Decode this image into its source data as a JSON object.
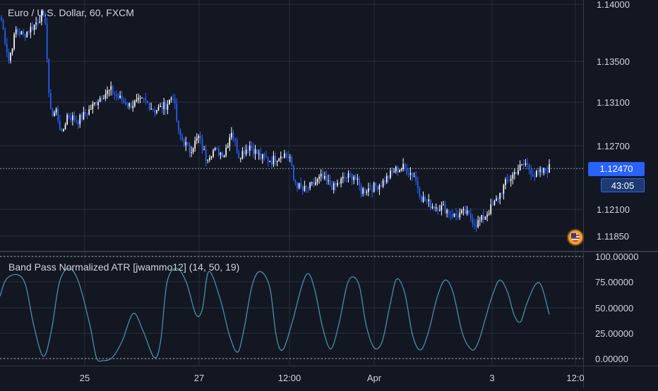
{
  "header": {
    "title": "Euro / U.S. Dollar, 60, FXCM",
    "indicator_title": "Band Pass Normalized ATR [jwammo12] (14, 50, 19)"
  },
  "price_badge": {
    "last_price": "1.12470",
    "countdown": "43:05"
  },
  "colors": {
    "background": "#131722",
    "bull": "#ffffff",
    "bear": "#2962ff",
    "oscillator": "#4a8ea8",
    "axis_text": "#d1d4dc",
    "price_badge": "#2962ff"
  },
  "icons": {
    "currency_flag": "us-flag-icon"
  },
  "chart_data": [
    {
      "type": "candlestick",
      "title": "Euro / U.S. Dollar, 60, FXCM",
      "ylim": [
        1.1165,
        1.1415
      ],
      "y_ticks": [
        "1.14000",
        "1.13500",
        "1.13100",
        "1.12700",
        "1.12100",
        "1.11850"
      ],
      "last_price": 1.1247,
      "anchors": [
        [
          0,
          1.1395
        ],
        [
          4,
          1.1355
        ],
        [
          8,
          1.1385
        ],
        [
          12,
          1.138
        ],
        [
          18,
          1.139
        ],
        [
          22,
          1.14
        ],
        [
          24,
          1.1395
        ],
        [
          26,
          1.1318
        ],
        [
          28,
          1.13
        ],
        [
          30,
          1.1305
        ],
        [
          33,
          1.128
        ],
        [
          36,
          1.13
        ],
        [
          42,
          1.1295
        ],
        [
          48,
          1.1305
        ],
        [
          55,
          1.132
        ],
        [
          60,
          1.1325
        ],
        [
          64,
          1.1318
        ],
        [
          70,
          1.131
        ],
        [
          78,
          1.1315
        ],
        [
          84,
          1.1305
        ],
        [
          90,
          1.131
        ],
        [
          94,
          1.132
        ],
        [
          97,
          1.1282
        ],
        [
          103,
          1.1265
        ],
        [
          108,
          1.1278
        ],
        [
          112,
          1.1258
        ],
        [
          116,
          1.1265
        ],
        [
          122,
          1.1262
        ],
        [
          126,
          1.1285
        ],
        [
          130,
          1.126
        ],
        [
          136,
          1.127
        ],
        [
          142,
          1.1258
        ],
        [
          148,
          1.1255
        ],
        [
          154,
          1.1262
        ],
        [
          158,
          1.1258
        ],
        [
          160,
          1.1235
        ],
        [
          165,
          1.1225
        ],
        [
          170,
          1.123
        ],
        [
          175,
          1.1238
        ],
        [
          182,
          1.1228
        ],
        [
          188,
          1.1238
        ],
        [
          193,
          1.124
        ],
        [
          197,
          1.1225
        ],
        [
          203,
          1.1228
        ],
        [
          208,
          1.1232
        ],
        [
          215,
          1.1245
        ],
        [
          220,
          1.1248
        ],
        [
          226,
          1.124
        ],
        [
          230,
          1.1218
        ],
        [
          236,
          1.121
        ],
        [
          242,
          1.1208
        ],
        [
          248,
          1.12
        ],
        [
          254,
          1.1203
        ],
        [
          260,
          1.1192
        ],
        [
          264,
          1.1198
        ],
        [
          270,
          1.1212
        ],
        [
          276,
          1.1232
        ],
        [
          282,
          1.1245
        ],
        [
          287,
          1.1252
        ],
        [
          292,
          1.124
        ],
        [
          296,
          1.1243
        ],
        [
          300,
          1.1248
        ]
      ]
    },
    {
      "type": "line",
      "title": "Band Pass Normalized ATR [jwammo12] (14, 50, 19)",
      "ylim": [
        -2,
        103
      ],
      "y_ticks": [
        "100.00000",
        "75.00000",
        "50.00000",
        "25.00000",
        "0.00000"
      ],
      "x_tick_labels": [
        "25",
        "27",
        "12:00",
        "Apr",
        "3",
        "12:0"
      ],
      "series": [
        {
          "x": [
            0,
            4,
            11,
            16,
            21,
            27,
            32,
            37,
            43,
            49,
            56,
            60,
            64,
            70,
            76,
            83,
            89,
            96,
            100,
            104,
            110,
            116,
            122,
            126,
            130,
            137,
            143,
            148,
            152,
            157,
            162,
            168,
            172,
            176,
            182,
            188,
            192,
            196,
            201,
            206,
            211,
            216,
            220,
            224,
            228,
            233,
            238,
            243,
            247,
            252,
            257,
            262,
            267,
            272,
            277,
            282,
            288,
            294,
            298,
            302,
            306,
            311,
            316,
            320,
            324,
            328,
            333,
            337,
            342
          ],
          "y": [
            62,
            78,
            82,
            72,
            35,
            6,
            30,
            75,
            88,
            75,
            35,
            5,
            2,
            5,
            20,
            46,
            30,
            5,
            20,
            75,
            88,
            75,
            45,
            50,
            85,
            60,
            25,
            10,
            32,
            72,
            85,
            70,
            25,
            12,
            38,
            72,
            83,
            68,
            32,
            13,
            36,
            72,
            80,
            70,
            35,
            14,
            20,
            55,
            78,
            65,
            25,
            12,
            30,
            60,
            77,
            66,
            27,
            12,
            20,
            40,
            60,
            77,
            66,
            45,
            38,
            55,
            72,
            72,
            45
          ]
        }
      ]
    }
  ]
}
